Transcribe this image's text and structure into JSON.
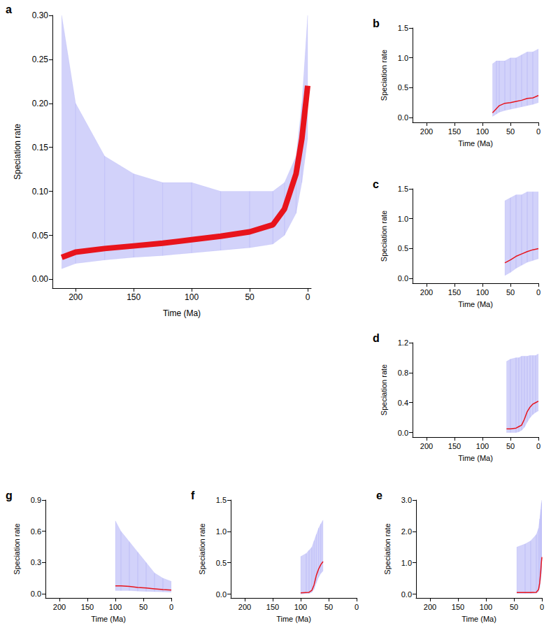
{
  "chart_data": [
    {
      "type": "line",
      "panel": "a",
      "xlabel": "Time (Ma)",
      "ylabel": "Speciation rate",
      "x": [
        212,
        200,
        175,
        150,
        125,
        100,
        75,
        50,
        30,
        20,
        10,
        5,
        0
      ],
      "values": [
        0.025,
        0.031,
        0.035,
        0.038,
        0.041,
        0.045,
        0.049,
        0.054,
        0.062,
        0.08,
        0.12,
        0.16,
        0.22
      ],
      "color": "#e8141c",
      "band_lower": [
        0.012,
        0.018,
        0.022,
        0.025,
        0.027,
        0.03,
        0.033,
        0.036,
        0.04,
        0.05,
        0.075,
        0.11,
        0.16
      ],
      "band_upper": [
        0.3,
        0.2,
        0.14,
        0.12,
        0.11,
        0.11,
        0.1,
        0.1,
        0.1,
        0.11,
        0.14,
        0.2,
        0.3
      ],
      "band_color": "#6a6af0",
      "xlim": [
        220,
        -3
      ],
      "xticks": [
        200,
        150,
        100,
        50,
        0
      ],
      "ylim": [
        -0.01,
        0.3
      ],
      "yticks": [
        {
          "value": 0,
          "label": "0.00"
        },
        {
          "value": 0.05,
          "label": "0.05"
        },
        {
          "value": 0.1,
          "label": "0.10"
        },
        {
          "value": 0.15,
          "label": "0.15"
        },
        {
          "value": 0.2,
          "label": "0.20"
        },
        {
          "value": 0.25,
          "label": "0.25"
        },
        {
          "value": 0.3,
          "label": "0.30"
        }
      ]
    },
    {
      "type": "line",
      "panel": "b",
      "xlabel": "Time (Ma)",
      "ylabel": "Speciation rate",
      "x": [
        82,
        75,
        70,
        60,
        50,
        40,
        30,
        20,
        10,
        0
      ],
      "values": [
        0.08,
        0.15,
        0.2,
        0.24,
        0.25,
        0.27,
        0.29,
        0.32,
        0.33,
        0.37
      ],
      "color": "#e8141c",
      "band_lower": [
        0.02,
        0.06,
        0.09,
        0.12,
        0.14,
        0.16,
        0.18,
        0.2,
        0.22,
        0.25
      ],
      "band_upper": [
        0.9,
        0.95,
        0.95,
        0.95,
        1.0,
        1.0,
        1.05,
        1.1,
        1.1,
        1.15
      ],
      "band_color": "#6a6af0",
      "xlim": [
        225,
        0
      ],
      "xticks": [
        200,
        150,
        100,
        50,
        0
      ],
      "ylim": [
        -0.08,
        1.5
      ],
      "yticks": [
        {
          "value": 0,
          "label": "0.0"
        },
        0.5,
        {
          "value": 1,
          "label": "1.0"
        },
        1.5
      ]
    },
    {
      "type": "line",
      "panel": "c",
      "xlabel": "Time (Ma)",
      "ylabel": "Speciation rate",
      "x": [
        60,
        50,
        40,
        30,
        20,
        10,
        0
      ],
      "values": [
        0.26,
        0.31,
        0.37,
        0.41,
        0.45,
        0.48,
        0.5
      ],
      "color": "#e8141c",
      "band_lower": [
        0.05,
        0.1,
        0.17,
        0.22,
        0.27,
        0.3,
        0.33
      ],
      "band_upper": [
        1.3,
        1.35,
        1.4,
        1.4,
        1.45,
        1.45,
        1.45
      ],
      "band_color": "#6a6af0",
      "xlim": [
        225,
        0
      ],
      "xticks": [
        200,
        150,
        100,
        50,
        0
      ],
      "ylim": [
        -0.08,
        1.5
      ],
      "yticks": [
        {
          "value": 0,
          "label": "0.0"
        },
        0.5,
        {
          "value": 1,
          "label": "1.0"
        },
        1.5
      ]
    },
    {
      "type": "line",
      "panel": "d",
      "xlabel": "Time (Ma)",
      "ylabel": "Speciation rate",
      "x": [
        57,
        50,
        40,
        35,
        30,
        25,
        20,
        15,
        10,
        5,
        0
      ],
      "values": [
        0.05,
        0.05,
        0.06,
        0.08,
        0.1,
        0.18,
        0.28,
        0.34,
        0.38,
        0.4,
        0.42
      ],
      "color": "#e8141c",
      "band_lower": [
        0,
        0,
        0,
        0.01,
        0.03,
        0.07,
        0.14,
        0.2,
        0.24,
        0.27,
        0.29
      ],
      "band_upper": [
        0.95,
        0.98,
        1.0,
        1.0,
        1.02,
        1.02,
        1.02,
        1.03,
        1.03,
        1.03,
        1.05
      ],
      "band_color": "#6a6af0",
      "xlim": [
        225,
        0
      ],
      "xticks": [
        200,
        150,
        100,
        50,
        0
      ],
      "ylim": [
        -0.06,
        1.2
      ],
      "yticks": [
        {
          "value": 0,
          "label": "0.0"
        },
        0.4,
        0.8,
        1.2
      ]
    },
    {
      "type": "line",
      "panel": "e",
      "xlabel": "Time (Ma)",
      "ylabel": "Speciation rate",
      "x": [
        45,
        30,
        20,
        10,
        6,
        4,
        2,
        1,
        0
      ],
      "values": [
        0.05,
        0.05,
        0.05,
        0.06,
        0.15,
        0.35,
        0.75,
        1.0,
        1.18
      ],
      "color": "#e8141c",
      "band_lower": [
        0.02,
        0.02,
        0.02,
        0.03,
        0.08,
        0.2,
        0.45,
        0.65,
        0.8
      ],
      "band_upper": [
        1.5,
        1.6,
        1.7,
        1.9,
        2.1,
        2.4,
        2.7,
        2.9,
        3.0
      ],
      "band_color": "#6a6af0",
      "xlim": [
        225,
        0
      ],
      "xticks": [
        200,
        150,
        100,
        50,
        0
      ],
      "ylim": [
        -0.12,
        3.0
      ],
      "yticks": [
        {
          "value": 0,
          "label": "0.0"
        },
        {
          "value": 1,
          "label": "1.0"
        },
        {
          "value": 2,
          "label": "2.0"
        },
        {
          "value": 3,
          "label": "3.0"
        }
      ]
    },
    {
      "type": "line",
      "panel": "f",
      "xlabel": "Time (Ma)",
      "ylabel": "Speciation rate",
      "x": [
        100,
        90,
        85,
        80,
        76,
        72,
        68,
        64,
        60
      ],
      "values": [
        0.02,
        0.025,
        0.03,
        0.06,
        0.15,
        0.3,
        0.4,
        0.47,
        0.52
      ],
      "color": "#e8141c",
      "band_lower": [
        0,
        0.01,
        0.01,
        0.03,
        0.08,
        0.18,
        0.27,
        0.33,
        0.37
      ],
      "band_upper": [
        0.6,
        0.65,
        0.7,
        0.75,
        0.85,
        0.95,
        1.05,
        1.12,
        1.18
      ],
      "band_color": "#6a6af0",
      "xlim": [
        225,
        0
      ],
      "xticks": [
        200,
        150,
        100,
        50,
        0
      ],
      "ylim": [
        -0.06,
        1.5
      ],
      "yticks": [
        {
          "value": 0,
          "label": "0.0"
        },
        0.5,
        {
          "value": 1,
          "label": "1.0"
        },
        1.5
      ]
    },
    {
      "type": "line",
      "panel": "g",
      "xlabel": "Time (Ma)",
      "ylabel": "Speciation rate",
      "x": [
        100,
        90,
        75,
        60,
        45,
        30,
        15,
        0
      ],
      "values": [
        0.075,
        0.075,
        0.07,
        0.06,
        0.055,
        0.048,
        0.04,
        0.035
      ],
      "color": "#e8141c",
      "band_lower": [
        0.03,
        0.03,
        0.03,
        0.025,
        0.022,
        0.02,
        0.018,
        0.015
      ],
      "band_upper": [
        0.7,
        0.6,
        0.5,
        0.4,
        0.3,
        0.2,
        0.15,
        0.12
      ],
      "band_color": "#6a6af0",
      "xlim": [
        225,
        0
      ],
      "xticks": [
        200,
        150,
        100,
        50,
        0
      ],
      "ylim": [
        -0.04,
        0.9
      ],
      "yticks": [
        {
          "value": 0,
          "label": "0.0"
        },
        0.3,
        0.6,
        0.9
      ]
    }
  ]
}
